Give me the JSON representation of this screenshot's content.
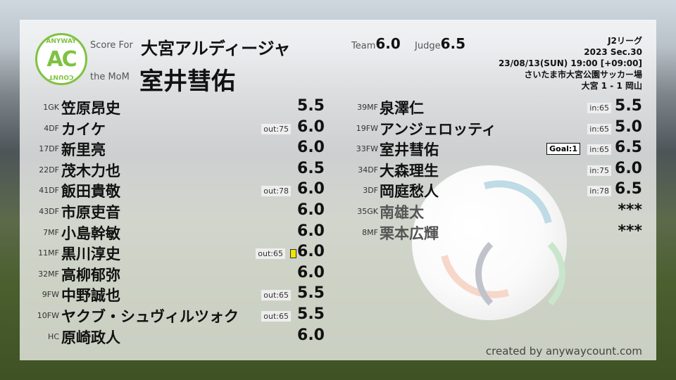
{
  "header": {
    "score_for_label": "Score For",
    "team_name": "大宮アルディージャ",
    "mom_label": "the MoM",
    "mom_name": "室井彗佑",
    "team_score_label": "Team",
    "team_score": "6.0",
    "judge_score_label": "Judge",
    "judge_score": "6.5"
  },
  "logo": {
    "top": "ANYWAY",
    "mid": "AC",
    "bottom": "COUNT"
  },
  "match": {
    "league": "J2リーグ",
    "section": "2023 Sec.30",
    "datetime": "23/08/13(SUN) 19:00 [+09:00]",
    "venue": "さいたま市大宮公園サッカー場",
    "result": "大宮 1 - 1 岡山"
  },
  "starters": [
    {
      "pos": "1GK",
      "name": "笠原昂史",
      "score": "5.5"
    },
    {
      "pos": "4DF",
      "name": "カイケ",
      "tag": "out:75",
      "score": "6.0"
    },
    {
      "pos": "17DF",
      "name": "新里亮",
      "score": "6.0"
    },
    {
      "pos": "22DF",
      "name": "茂木力也",
      "score": "6.5"
    },
    {
      "pos": "41DF",
      "name": "飯田貴敬",
      "tag": "out:78",
      "score": "6.0"
    },
    {
      "pos": "43DF",
      "name": "市原吏音",
      "score": "6.0"
    },
    {
      "pos": "7MF",
      "name": "小島幹敏",
      "score": "6.0"
    },
    {
      "pos": "11MF",
      "name": "黒川淳史",
      "tag": "out:65",
      "yellow": true,
      "score": "6.0"
    },
    {
      "pos": "32MF",
      "name": "高柳郁弥",
      "score": "6.0"
    },
    {
      "pos": "9FW",
      "name": "中野誠也",
      "tag": "out:65",
      "score": "5.5"
    },
    {
      "pos": "10FW",
      "name": "ヤクブ・シュヴィルツォク",
      "tag": "out:65",
      "score": "5.5"
    },
    {
      "pos": "HC",
      "name": "原崎政人",
      "score": "6.0"
    }
  ],
  "subs": [
    {
      "pos": "39MF",
      "name": "泉澤仁",
      "tag": "in:65",
      "score": "5.5"
    },
    {
      "pos": "19FW",
      "name": "アンジェロッティ",
      "tag": "in:65",
      "score": "5.0"
    },
    {
      "pos": "33FW",
      "name": "室井彗佑",
      "goal": "Goal:1",
      "tag": "in:65",
      "score": "6.5"
    },
    {
      "pos": "34DF",
      "name": "大森理生",
      "tag": "in:75",
      "score": "6.0"
    },
    {
      "pos": "3DF",
      "name": "岡庭愁人",
      "tag": "in:78",
      "score": "6.5"
    },
    {
      "pos": "35GK",
      "name": "南雄太",
      "score": "***",
      "unused": true
    },
    {
      "pos": "8MF",
      "name": "栗本広輝",
      "score": "***",
      "unused": true
    }
  ],
  "colors": {
    "logo_green": "#7fc241",
    "yellow_card": "#f2e600"
  },
  "footer": {
    "credit": "created by anywaycount.com"
  }
}
